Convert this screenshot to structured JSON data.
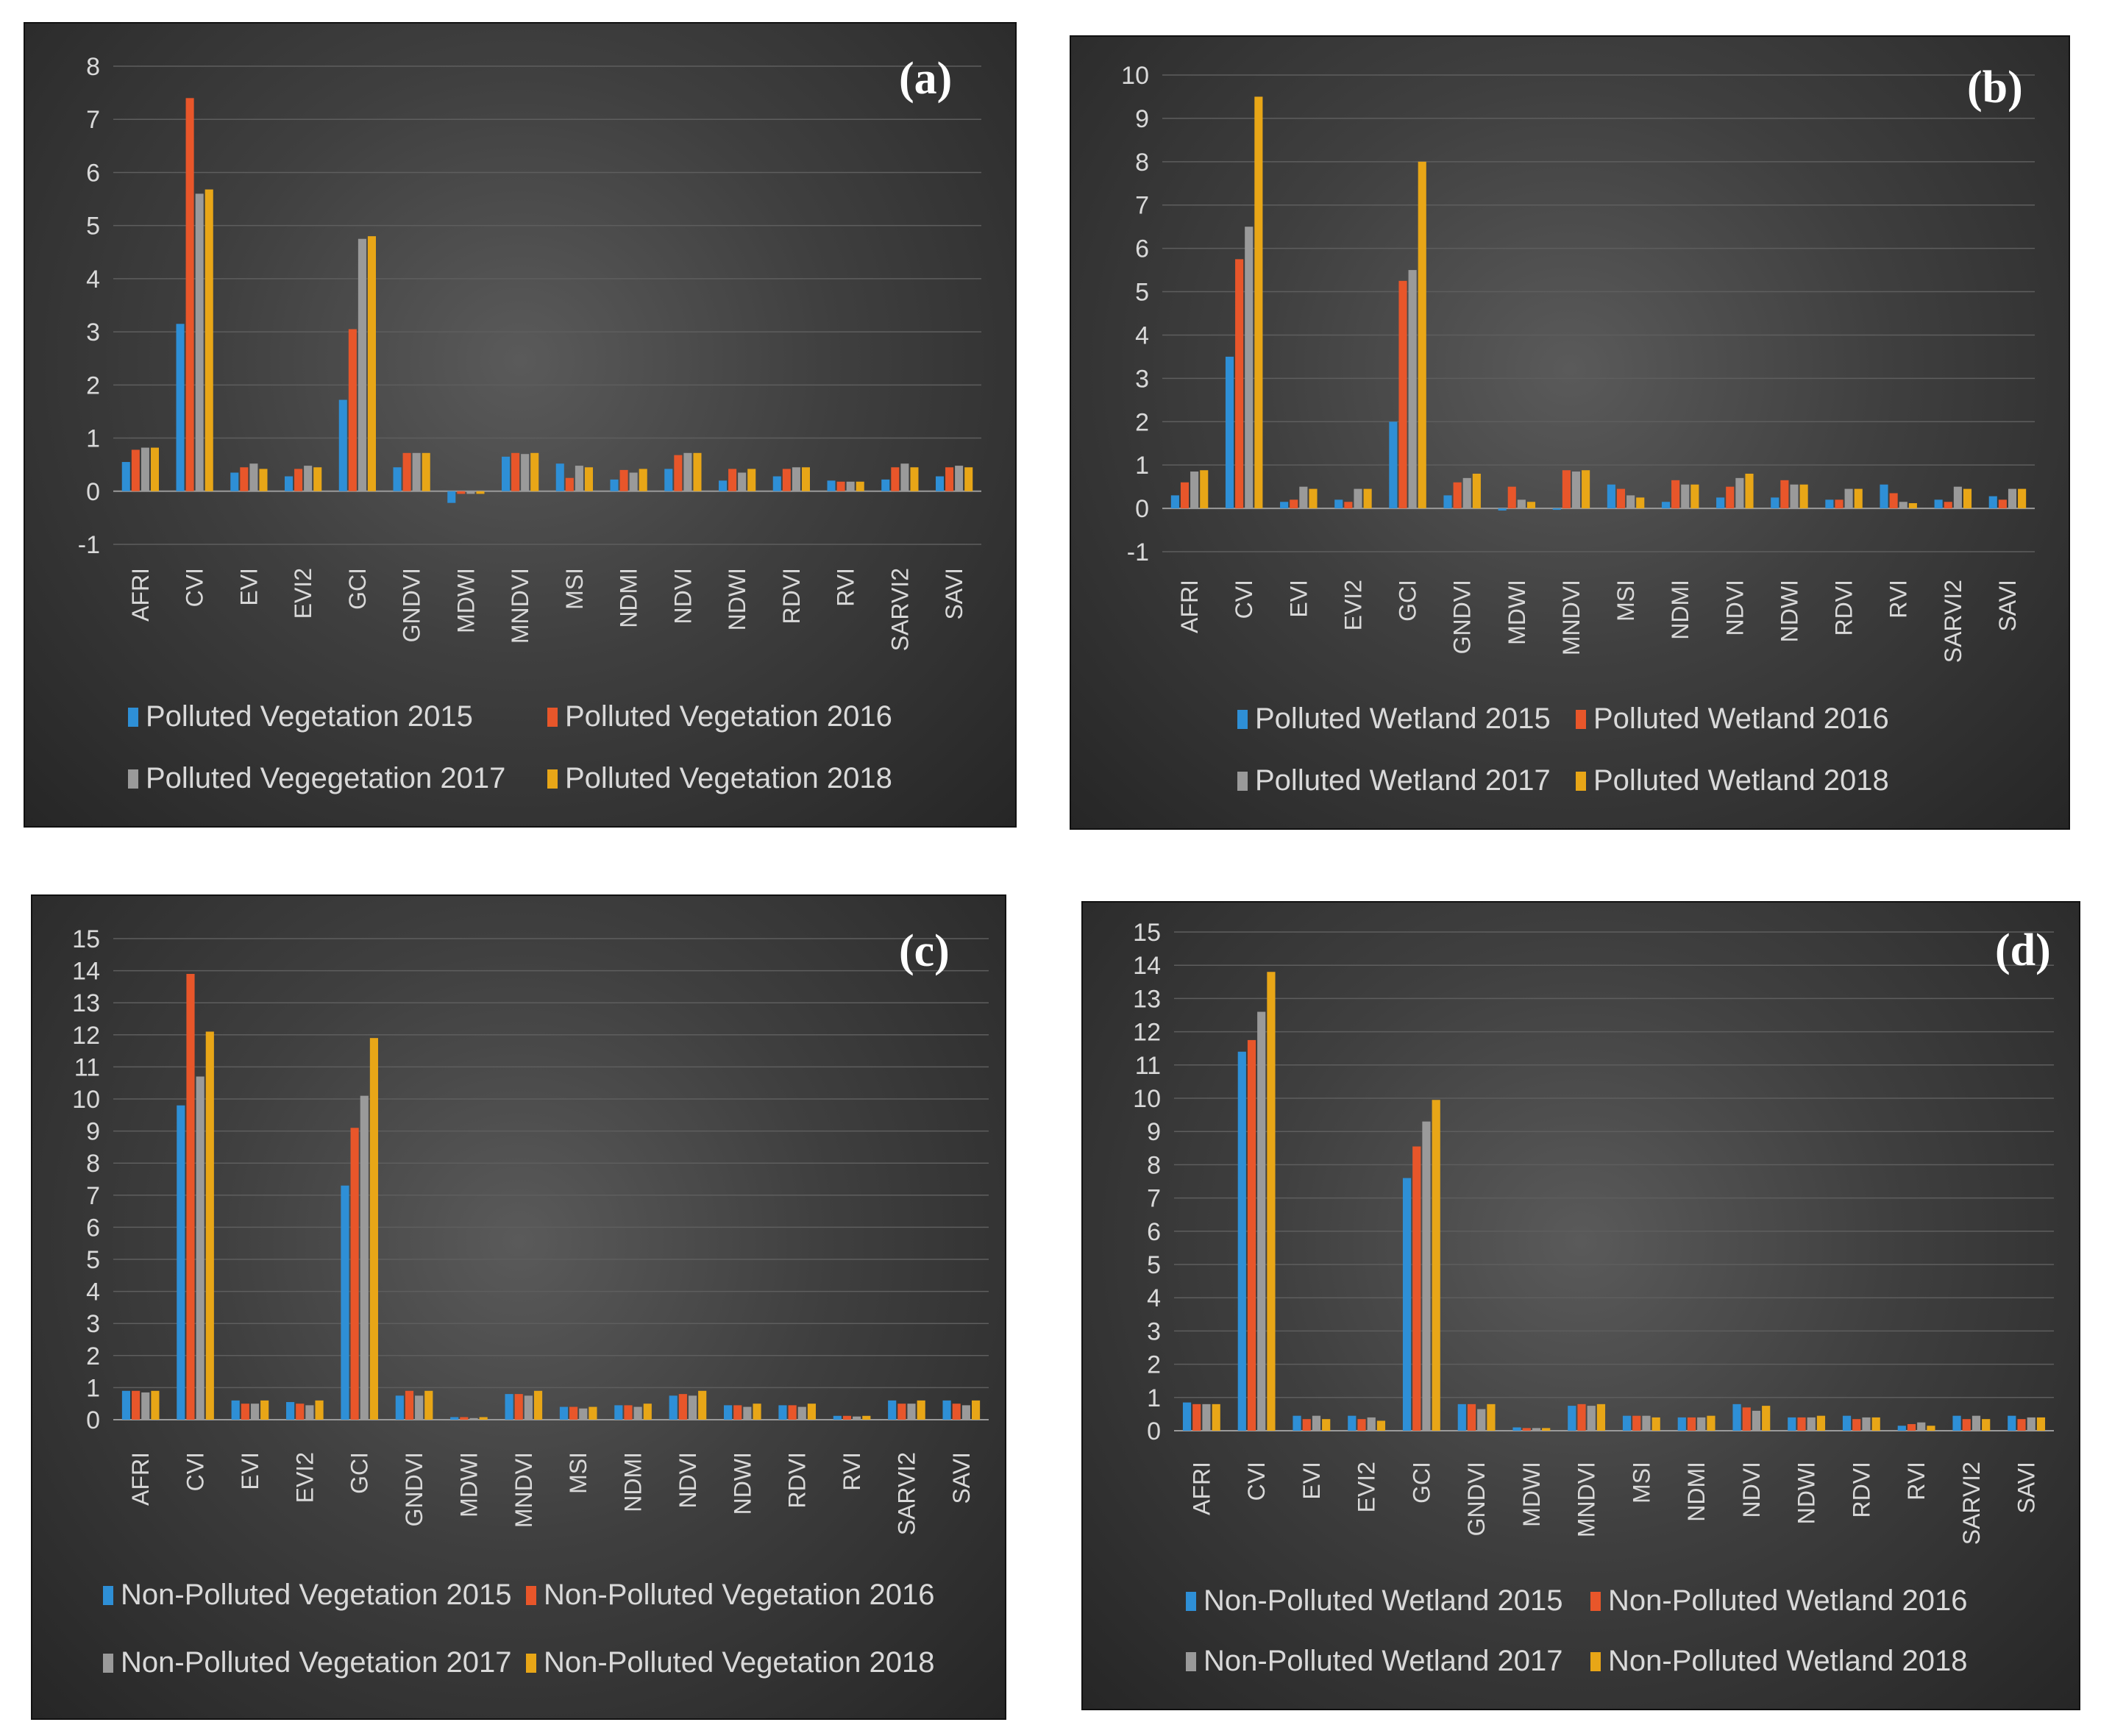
{
  "colors": {
    "s2015": "#2e8fd6",
    "s2016": "#e8562a",
    "s2017": "#9a9a9a",
    "s2018": "#e8a617"
  },
  "chart_data": [
    {
      "type": "bar",
      "label": "(a)",
      "categories": [
        "AFRI",
        "CVI",
        "EVI",
        "EVI2",
        "GCI",
        "GNDVI",
        "MDWI",
        "MNDVI",
        "MSI",
        "NDMI",
        "NDVI",
        "NDWI",
        "RDVI",
        "RVI",
        "SARVI2",
        "SAVI"
      ],
      "ylim": [
        -1,
        8
      ],
      "yticks": [
        "8",
        "7",
        "6",
        "5",
        "4",
        "3",
        "2",
        "1",
        "0",
        "-1"
      ],
      "series": [
        {
          "name": "Polluted Vegetation 2015",
          "values": [
            0.55,
            3.15,
            0.35,
            0.28,
            1.72,
            0.45,
            -0.22,
            0.65,
            0.52,
            0.22,
            0.42,
            0.2,
            0.28,
            0.2,
            0.22,
            0.28
          ]
        },
        {
          "name": "Polluted Vegetation 2016",
          "values": [
            0.78,
            7.4,
            0.45,
            0.42,
            3.05,
            0.72,
            -0.05,
            0.72,
            0.25,
            0.4,
            0.68,
            0.42,
            0.42,
            0.18,
            0.45,
            0.45
          ]
        },
        {
          "name": "Polluted Vegegetation 2017",
          "values": [
            0.82,
            5.6,
            0.52,
            0.48,
            4.75,
            0.72,
            -0.05,
            0.7,
            0.48,
            0.35,
            0.72,
            0.35,
            0.45,
            0.18,
            0.52,
            0.48
          ]
        },
        {
          "name": "Polluted Vegetation 2018",
          "values": [
            0.82,
            5.68,
            0.42,
            0.45,
            4.8,
            0.72,
            -0.05,
            0.72,
            0.45,
            0.42,
            0.72,
            0.42,
            0.45,
            0.18,
            0.45,
            0.45
          ]
        }
      ]
    },
    {
      "type": "bar",
      "label": "(b)",
      "categories": [
        "AFRI",
        "CVI",
        "EVI",
        "EVI2",
        "GCI",
        "GNDVI",
        "MDWI",
        "MNDVI",
        "MSI",
        "NDMI",
        "NDVI",
        "NDWI",
        "RDVI",
        "RVI",
        "SARVI2",
        "SAVI"
      ],
      "ylim": [
        -1,
        10
      ],
      "yticks": [
        "10",
        "9",
        "8",
        "7",
        "6",
        "5",
        "4",
        "3",
        "2",
        "1",
        "0",
        "-1"
      ],
      "series": [
        {
          "name": "Polluted Wetland 2015",
          "values": [
            0.3,
            3.5,
            0.15,
            0.2,
            2.0,
            0.3,
            -0.05,
            0.0,
            0.55,
            0.15,
            0.25,
            0.25,
            0.2,
            0.55,
            0.2,
            0.28
          ]
        },
        {
          "name": "Polluted Wetland 2016",
          "values": [
            0.6,
            5.75,
            0.2,
            0.15,
            5.25,
            0.6,
            0.5,
            0.88,
            0.45,
            0.65,
            0.5,
            0.65,
            0.2,
            0.35,
            0.15,
            0.2
          ]
        },
        {
          "name": "Polluted Wetland 2017",
          "values": [
            0.85,
            6.5,
            0.5,
            0.45,
            5.5,
            0.7,
            0.2,
            0.85,
            0.3,
            0.55,
            0.7,
            0.55,
            0.45,
            0.15,
            0.5,
            0.45
          ]
        },
        {
          "name": "Polluted Wetland 2018",
          "values": [
            0.88,
            9.5,
            0.45,
            0.45,
            8.0,
            0.8,
            0.15,
            0.88,
            0.25,
            0.55,
            0.8,
            0.55,
            0.45,
            0.12,
            0.45,
            0.45
          ]
        }
      ]
    },
    {
      "type": "bar",
      "label": "(c)",
      "categories": [
        "AFRI",
        "CVI",
        "EVI",
        "EVI2",
        "GCI",
        "GNDVI",
        "MDWI",
        "MNDVI",
        "MSI",
        "NDMI",
        "NDVI",
        "NDWI",
        "RDVI",
        "RVI",
        "SARVI2",
        "SAVI"
      ],
      "ylim": [
        0,
        15
      ],
      "yticks": [
        "15",
        "14",
        "13",
        "12",
        "11",
        "10",
        "9",
        "8",
        "7",
        "6",
        "5",
        "4",
        "3",
        "2",
        "1",
        "0"
      ],
      "series": [
        {
          "name": "Non-Polluted Vegetation 2015",
          "values": [
            0.9,
            9.8,
            0.6,
            0.55,
            7.3,
            0.75,
            0.08,
            0.8,
            0.4,
            0.45,
            0.75,
            0.45,
            0.45,
            0.12,
            0.6,
            0.6
          ]
        },
        {
          "name": "Non-Polluted Vegetation 2016",
          "values": [
            0.9,
            13.9,
            0.5,
            0.5,
            9.1,
            0.9,
            0.08,
            0.8,
            0.4,
            0.45,
            0.8,
            0.45,
            0.45,
            0.12,
            0.5,
            0.5
          ]
        },
        {
          "name": "Non-Polluted Vegetation 2017",
          "values": [
            0.85,
            10.7,
            0.5,
            0.45,
            10.1,
            0.75,
            0.05,
            0.75,
            0.35,
            0.4,
            0.75,
            0.4,
            0.4,
            0.1,
            0.5,
            0.45
          ]
        },
        {
          "name": "Non-Polluted Vegetation 2018",
          "values": [
            0.9,
            12.1,
            0.6,
            0.6,
            11.9,
            0.9,
            0.08,
            0.9,
            0.4,
            0.5,
            0.9,
            0.5,
            0.5,
            0.12,
            0.6,
            0.6
          ]
        }
      ]
    },
    {
      "type": "bar",
      "label": "(d)",
      "categories": [
        "AFRI",
        "CVI",
        "EVI",
        "EVI2",
        "GCI",
        "GNDVI",
        "MDWI",
        "MNDVI",
        "MSI",
        "NDMI",
        "NDVI",
        "NDWI",
        "RDVI",
        "RVI",
        "SARVI2",
        "SAVI"
      ],
      "ylim": [
        0,
        15
      ],
      "yticks": [
        "15",
        "14",
        "13",
        "12",
        "11",
        "10",
        "9",
        "8",
        "7",
        "6",
        "5",
        "4",
        "3",
        "2",
        "1",
        "0"
      ],
      "series": [
        {
          "name": "Non-Polluted Wetland 2015",
          "values": [
            0.85,
            11.4,
            0.45,
            0.45,
            7.6,
            0.8,
            0.1,
            0.75,
            0.45,
            0.4,
            0.8,
            0.4,
            0.45,
            0.15,
            0.45,
            0.45
          ]
        },
        {
          "name": "Non-Polluted Wetland 2016",
          "values": [
            0.8,
            11.75,
            0.35,
            0.35,
            8.55,
            0.8,
            0.08,
            0.8,
            0.45,
            0.4,
            0.7,
            0.4,
            0.35,
            0.2,
            0.35,
            0.35
          ]
        },
        {
          "name": "Non-Polluted Wetland 2017",
          "values": [
            0.8,
            12.6,
            0.45,
            0.4,
            9.3,
            0.65,
            0.08,
            0.75,
            0.45,
            0.4,
            0.6,
            0.4,
            0.4,
            0.25,
            0.45,
            0.4
          ]
        },
        {
          "name": "Non-Polluted Wetland 2018",
          "values": [
            0.8,
            13.8,
            0.35,
            0.3,
            9.95,
            0.8,
            0.08,
            0.8,
            0.4,
            0.45,
            0.75,
            0.45,
            0.4,
            0.15,
            0.35,
            0.4
          ]
        }
      ]
    }
  ]
}
